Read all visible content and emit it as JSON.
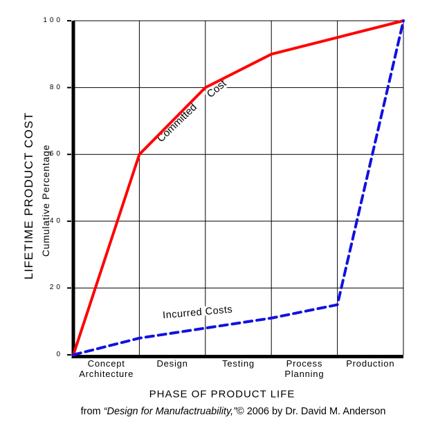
{
  "chart_data": {
    "type": "line",
    "title": "",
    "x_axis_title": "PHASE OF PRODUCT LIFE",
    "y_axis_title": "LIFETIME PRODUCT COST",
    "y_axis_subtitle": "Cumulative Percentage",
    "categories": [
      "Concept\nArchitecture",
      "Design",
      "Testing",
      "Process\nPlanning",
      "Production"
    ],
    "y_ticks": [
      100,
      80,
      60,
      40,
      20,
      0
    ],
    "ylim": [
      0,
      100
    ],
    "grid": true,
    "legend": "inline-line-labels",
    "series": [
      {
        "name": "Committed Cost",
        "label_segments": [
          "Committed",
          "Cost"
        ],
        "color": "#ff0000",
        "line_style": "solid",
        "values": [
          0,
          60,
          80,
          90,
          95,
          100
        ]
      },
      {
        "name": "Incurred Costs",
        "label_segments": [
          "Incurred Costs"
        ],
        "color": "#1111e0",
        "line_style": "dashed",
        "values": [
          0,
          5,
          8,
          11,
          15,
          100
        ]
      }
    ]
  },
  "caption": {
    "prefix": "from ",
    "italic": "“Design for Manufactruability,”",
    "suffix": "© 2006 by Dr. David M. Anderson"
  },
  "colors": {
    "committed_line": "#ff0000",
    "incurred_line": "#1111e0",
    "axis": "#000000",
    "grid": "#000000",
    "background": "#ffffff"
  }
}
